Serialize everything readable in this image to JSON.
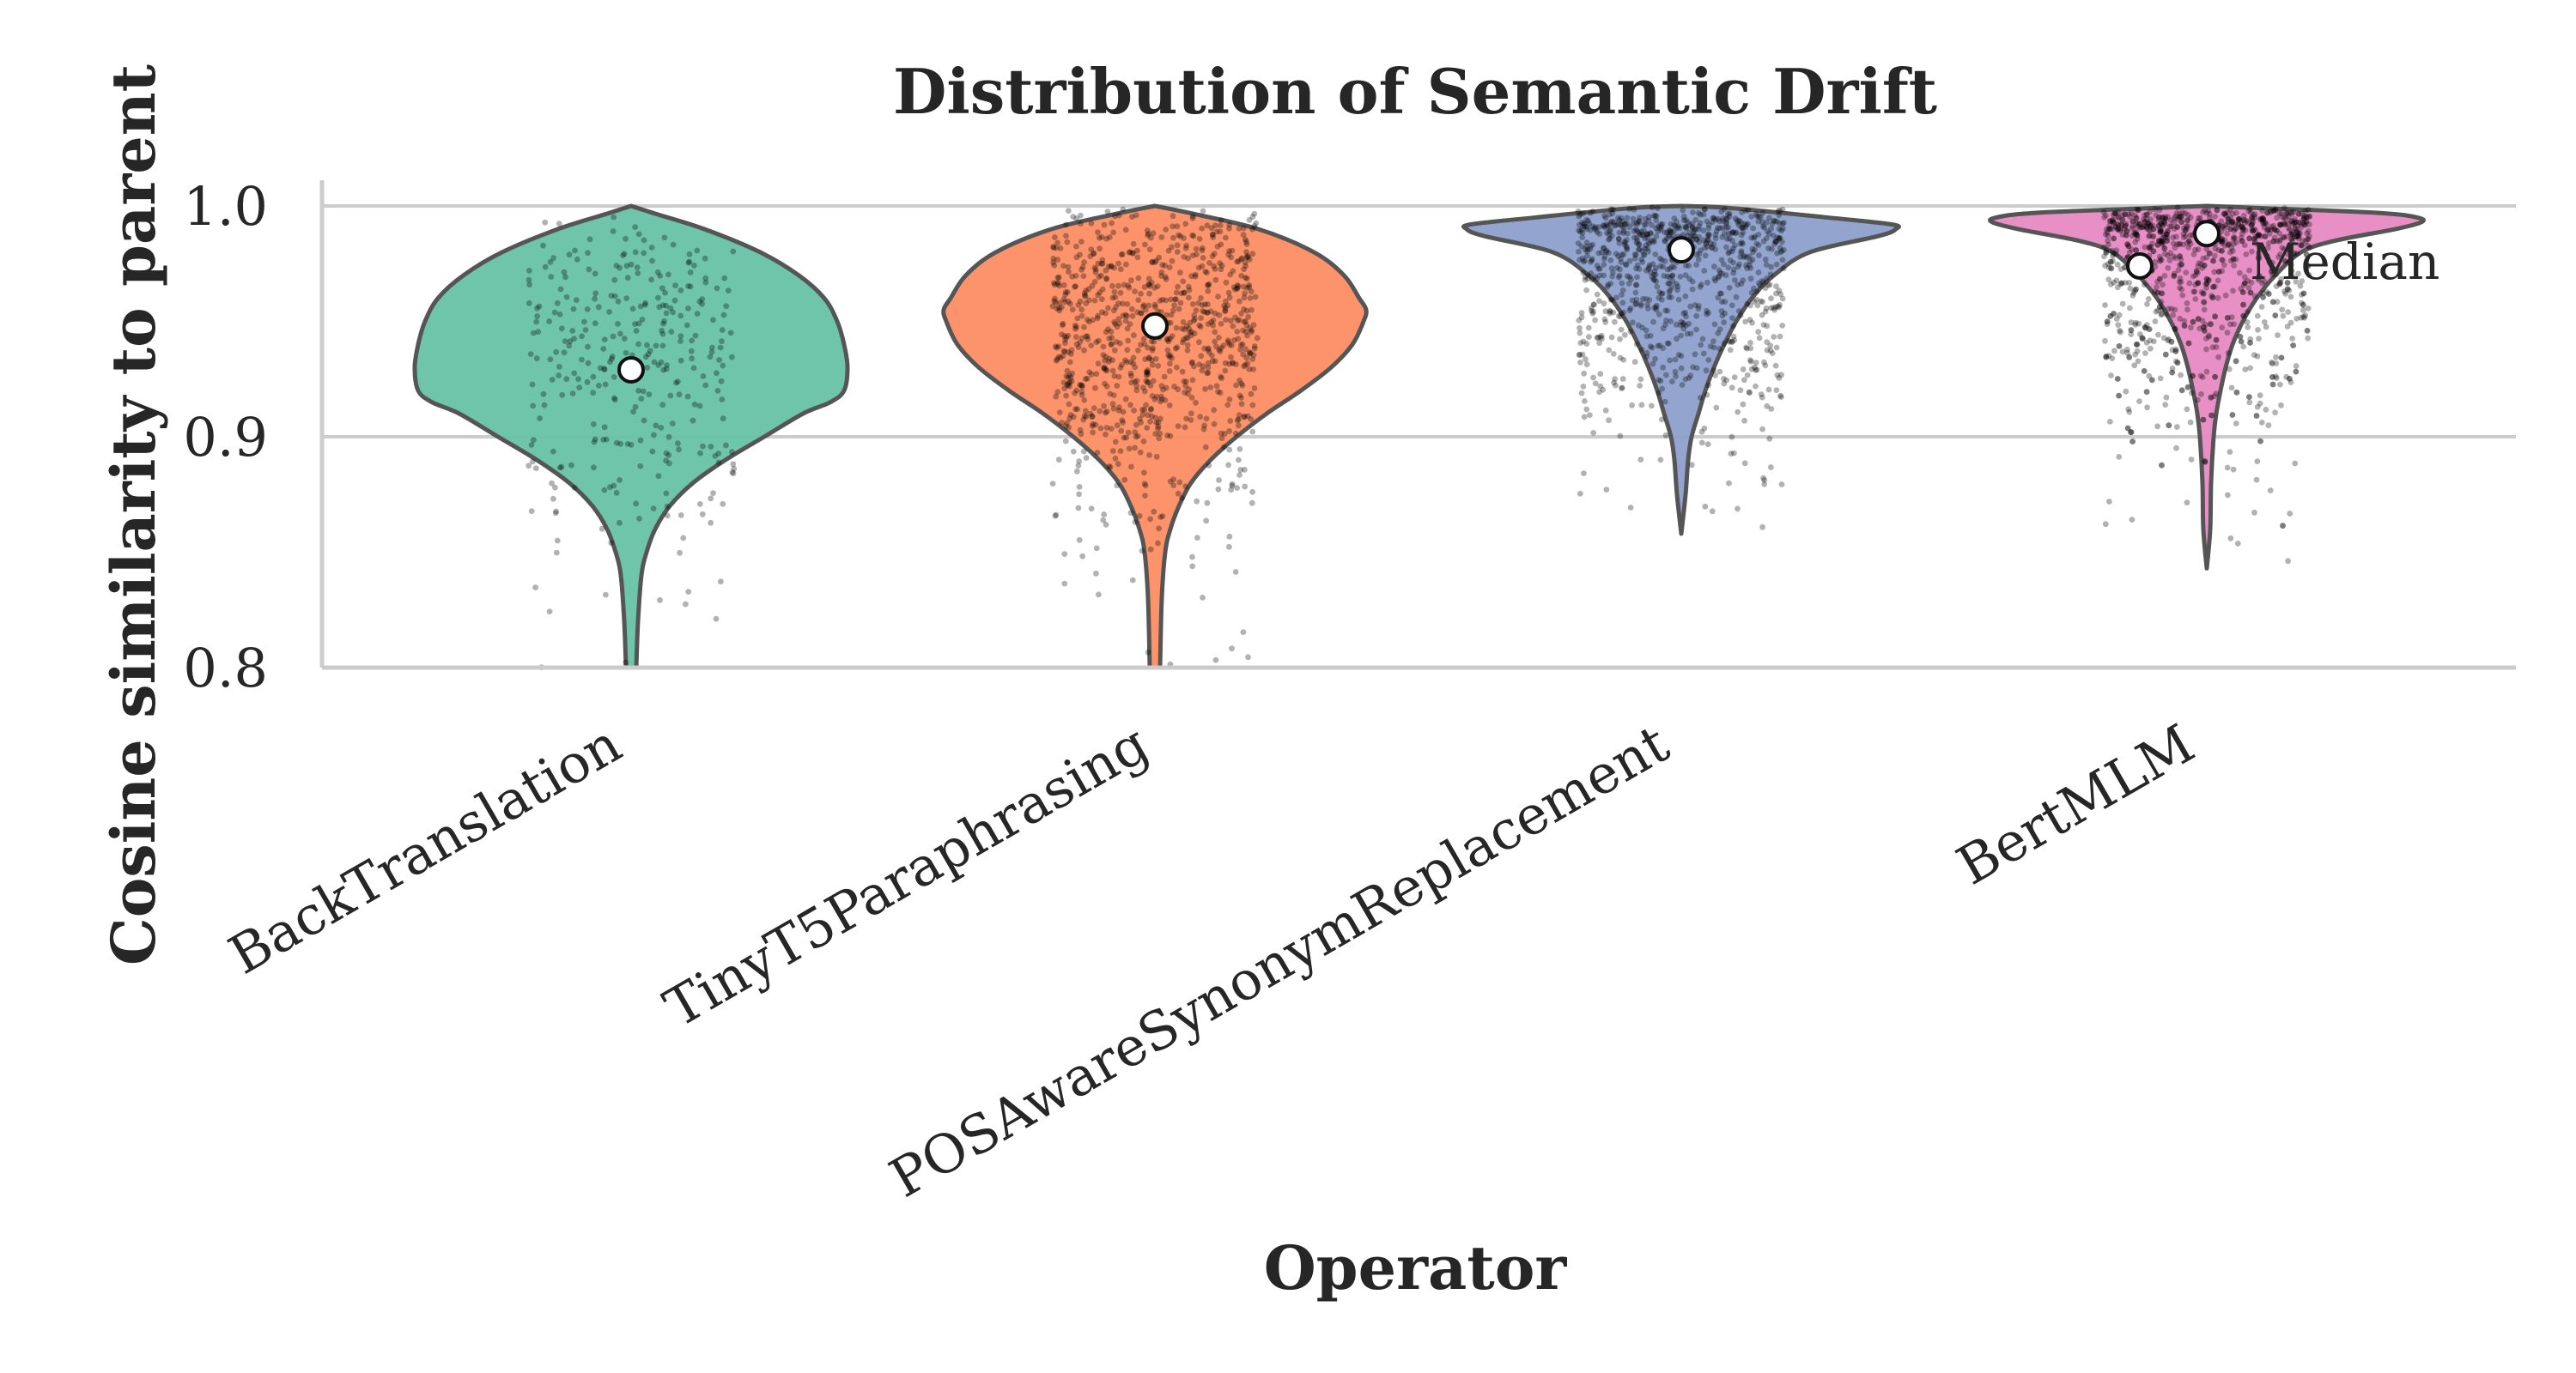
{
  "chart_data": {
    "type": "violin",
    "title": "Distribution of Semantic Drift",
    "xlabel": "Operator",
    "ylabel": "Cosine similarity to parent",
    "ylim": [
      0.8,
      1.0
    ],
    "yticks": [
      "0.8",
      "0.9",
      "1.0"
    ],
    "grid": true,
    "categories": [
      "BackTranslation",
      "TinyT5Paraphrasing",
      "POSAwareSynonymReplacement",
      "BertMLM"
    ],
    "medians": [
      0.929,
      0.948,
      0.981,
      0.988
    ],
    "ranges": [
      [
        0.8,
        1.0
      ],
      [
        0.8,
        1.0
      ],
      [
        0.858,
        1.0
      ],
      [
        0.843,
        1.0
      ]
    ],
    "colors": [
      "#66c2a5",
      "#fc8d62",
      "#8da0cb",
      "#e78ac3"
    ],
    "annotation": {
      "text": "Median",
      "category": "BertMLM",
      "y": 0.974
    }
  }
}
